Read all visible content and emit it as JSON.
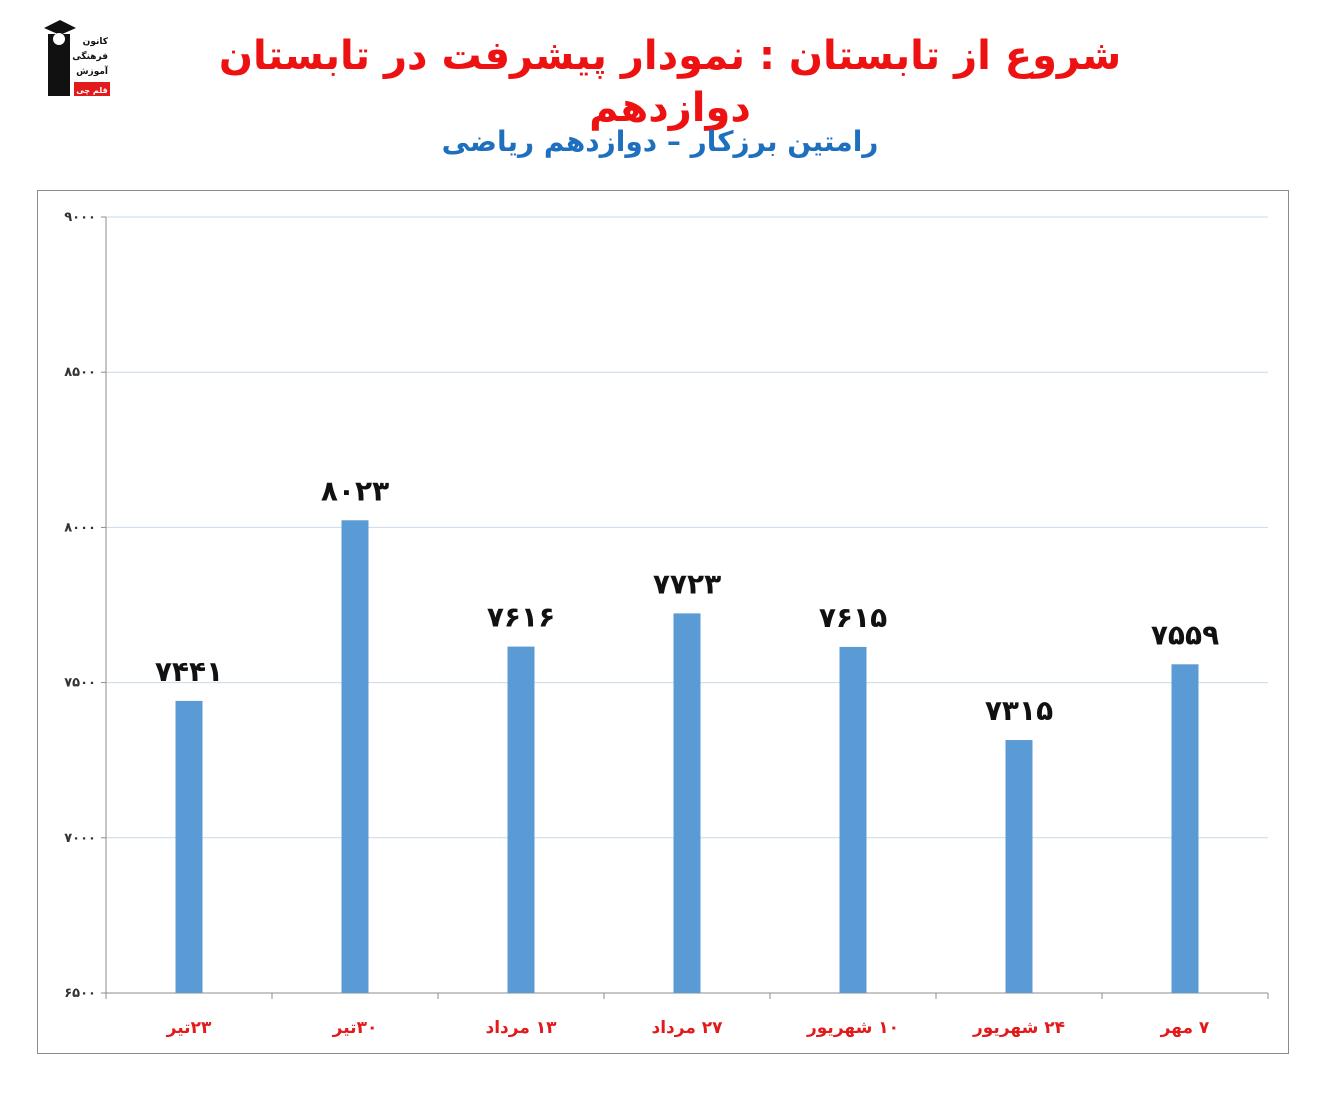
{
  "header": {
    "title": "شروع از تابستان : نمودار پیشرفت در تابستان دوازدهم",
    "subtitle": "رامتین برزکار – دوازدهم ریاضی",
    "logo_lines": [
      "کانون",
      "فرهنگی",
      "آموزش",
      "قلم چی"
    ]
  },
  "colors": {
    "title": "#ee1111",
    "subtitle": "#1f6fbf",
    "bar": "#5b9bd5",
    "category_label": "#e31a1c",
    "gridline": "#c9d9ec"
  },
  "chart_data": {
    "type": "bar",
    "categories": [
      "۲۳تیر",
      "۳۰تیر",
      "۱۳ مرداد",
      "۲۷ مرداد",
      "۱۰ شهریور",
      "۲۴ شهریور",
      "۷ مهر"
    ],
    "values": [
      7441,
      8023,
      7616,
      7723,
      7615,
      7315,
      7559
    ],
    "value_labels": [
      "۷۴۴۱",
      "۸۰۲۳",
      "۷۶۱۶",
      "۷۷۲۳",
      "۷۶۱۵",
      "۷۳۱۵",
      "۷۵۵۹"
    ],
    "yticks": [
      6500,
      7000,
      7500,
      8000,
      8500,
      9000
    ],
    "ytick_labels": [
      "۶۵۰۰",
      "۷۰۰۰",
      "۷۵۰۰",
      "۸۰۰۰",
      "۸۵۰۰",
      "۹۰۰۰"
    ],
    "ylim": [
      6500,
      9000
    ],
    "grid": true,
    "legend": "none"
  }
}
